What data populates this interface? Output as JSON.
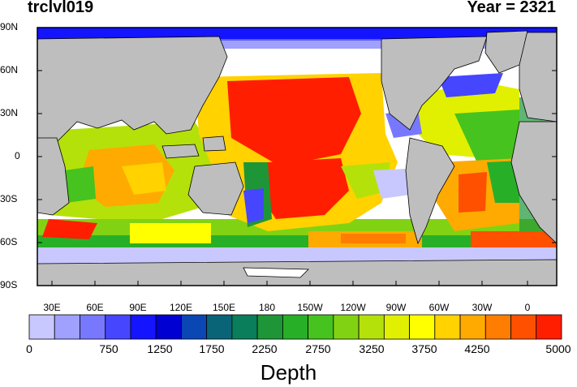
{
  "header": {
    "title_left": "trclvl019",
    "title_right": "Year = 2321"
  },
  "lat_labels": [
    "90N",
    "60N",
    "30N",
    "0",
    "30S",
    "60S",
    "90S"
  ],
  "lon_labels": [
    "30E",
    "60E",
    "90E",
    "120E",
    "150E",
    "180",
    "150W",
    "120W",
    "90W",
    "60W",
    "30W",
    "0"
  ],
  "colorbar": {
    "labels": [
      "0",
      "750",
      "1250",
      "1750",
      "2250",
      "2750",
      "3250",
      "3750",
      "4250",
      "5000"
    ],
    "title": "Depth",
    "colors": [
      "#c8c8ff",
      "#a0a0ff",
      "#7878ff",
      "#4646ff",
      "#1414ff",
      "#0000d2",
      "#0a46b4",
      "#0a6478",
      "#0a7d5a",
      "#1e9637",
      "#28af28",
      "#46c31e",
      "#82d214",
      "#b4e10a",
      "#e1f000",
      "#ffff00",
      "#ffd200",
      "#ffaa00",
      "#ff7d00",
      "#ff5000",
      "#ff1e00"
    ]
  },
  "map": {
    "land_color": "#bebebe",
    "ocean_color": "#ffffff"
  }
}
